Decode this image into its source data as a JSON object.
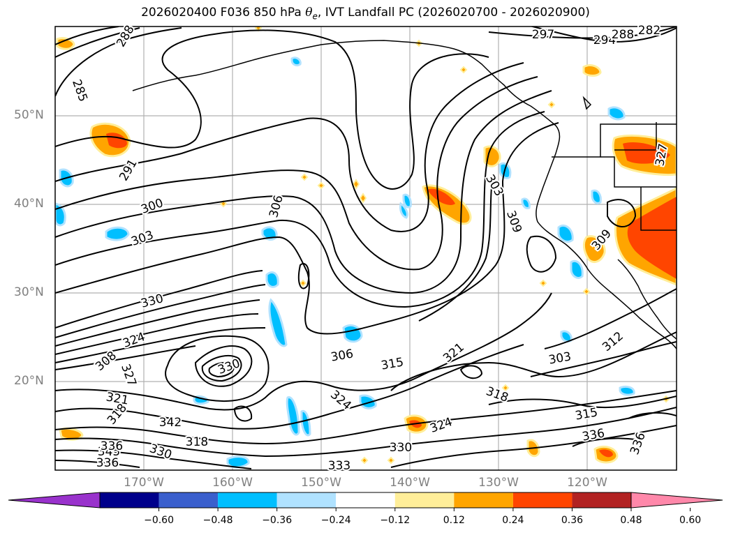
{
  "title": {
    "prefix": "2026020400 F036 850 hPa ",
    "theta": "θ",
    "theta_sub": "e",
    "suffix": ", IVT Landfall PC (2026020700 - 2026020900)"
  },
  "map": {
    "lat_labels": [
      "50°N",
      "40°N",
      "30°N",
      "20°N"
    ],
    "lon_labels": [
      "170°W",
      "160°W",
      "150°W",
      "140°W",
      "130°W",
      "120°W"
    ],
    "contour_labels": [
      "288",
      "294",
      "297",
      "288",
      "282",
      "285",
      "291",
      "300",
      "303",
      "306",
      "303",
      "309",
      "309",
      "327",
      "330",
      "324",
      "308",
      "327",
      "330",
      "321",
      "318",
      "342",
      "345",
      "336",
      "330",
      "336",
      "324",
      "318",
      "306",
      "315",
      "321",
      "303",
      "312",
      "318",
      "315",
      "336",
      "330",
      "324",
      "333",
      "336"
    ]
  },
  "colorbar": {
    "colors": [
      "#9932cc",
      "#00008b",
      "#3a5fcd",
      "#00bfff",
      "#b0e2ff",
      "#ffffff",
      "#ffee99",
      "#ffa500",
      "#ff4500",
      "#b22222",
      "#ff88aa"
    ],
    "tick_labels": [
      "−0.60",
      "−0.48",
      "−0.36",
      "−0.24",
      "−0.12",
      "0.12",
      "0.24",
      "0.36",
      "0.48",
      "0.60"
    ]
  }
}
